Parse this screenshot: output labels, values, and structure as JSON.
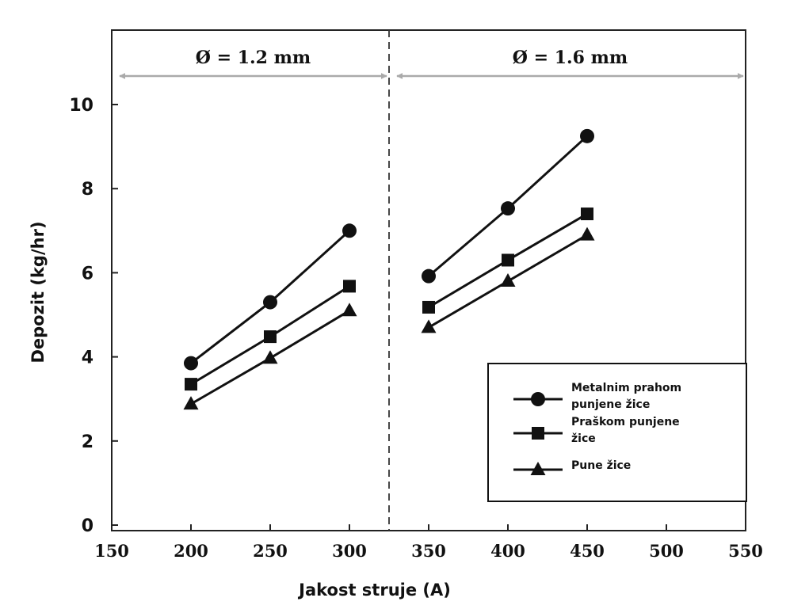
{
  "chart_data": {
    "type": "line",
    "xlabel": "Jakost struje (A)",
    "ylabel": "Depozit (kg/hr)",
    "xlim": [
      150,
      550
    ],
    "ylim": [
      0,
      10.8
    ],
    "xticks": [
      "150",
      "200",
      "250",
      "300",
      "350",
      "400",
      "450",
      "500",
      "550"
    ],
    "yticks": [
      "0",
      "2",
      "4",
      "6",
      "8",
      "10"
    ],
    "grid": false,
    "legend_position": "bottom-right",
    "divider_x": 325,
    "annotations": [
      {
        "text": "Ø = 1.2 mm",
        "x_from": 150,
        "x_to": 325
      },
      {
        "text": "Ø = 1.6 mm",
        "x_from": 325,
        "x_to": 550
      }
    ],
    "series": [
      {
        "name_lines": [
          "Metalnim prahom",
          "punjene žice"
        ],
        "marker": "circle",
        "segments": [
          [
            [
              200,
              3.85
            ],
            [
              250,
              5.3
            ],
            [
              300,
              7.0
            ]
          ],
          [
            [
              350,
              5.92
            ],
            [
              400,
              7.53
            ],
            [
              450,
              9.25
            ]
          ]
        ]
      },
      {
        "name_lines": [
          "Praškom punjene",
          "žice"
        ],
        "marker": "square",
        "segments": [
          [
            [
              200,
              3.35
            ],
            [
              250,
              4.48
            ],
            [
              300,
              5.68
            ]
          ],
          [
            [
              350,
              5.18
            ],
            [
              400,
              6.3
            ],
            [
              450,
              7.4
            ]
          ]
        ]
      },
      {
        "name_lines": [
          "Pune žice"
        ],
        "marker": "triangle",
        "segments": [
          [
            [
              200,
              2.88
            ],
            [
              250,
              3.97
            ],
            [
              300,
              5.1
            ]
          ],
          [
            [
              350,
              4.7
            ],
            [
              400,
              5.8
            ],
            [
              450,
              6.9
            ]
          ]
        ]
      }
    ]
  }
}
